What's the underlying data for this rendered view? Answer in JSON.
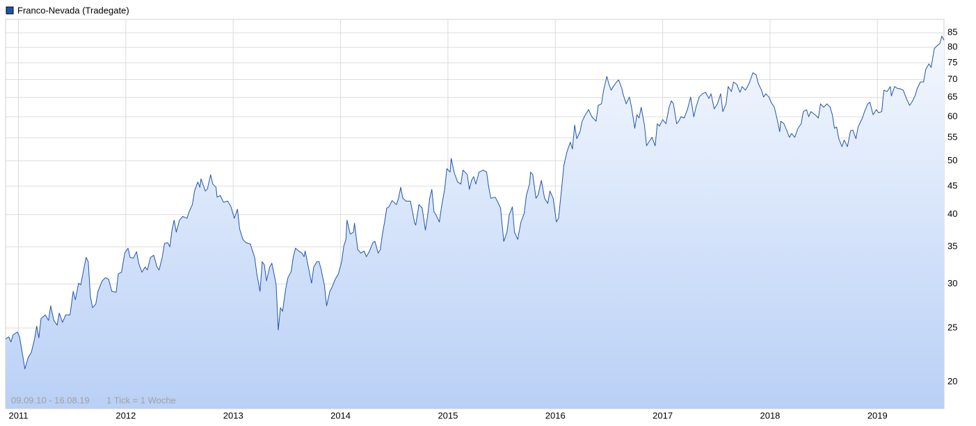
{
  "chart_data": {
    "type": "line",
    "log_y": true,
    "grid": true,
    "legend": "top-left",
    "annotations": [
      "09.09.10 - 16.08.19",
      "1 Tick = 1 Woche"
    ],
    "xlim": [
      2010.88,
      2019.62
    ],
    "xticks": [
      2011,
      2012,
      2013,
      2014,
      2015,
      2016,
      2017,
      2018,
      2019
    ],
    "ylim": [
      17.9,
      89.8
    ],
    "yticks": [
      20,
      25,
      30,
      35,
      40,
      45,
      50,
      55,
      60,
      65,
      70,
      75,
      80,
      85
    ],
    "x": [
      2010.88,
      2010.91,
      2010.93,
      2010.95,
      2010.99,
      2011.01,
      2011.04,
      2011.06,
      2011.09,
      2011.12,
      2011.15,
      2011.17,
      2011.19,
      2011.21,
      2011.25,
      2011.28,
      2011.3,
      2011.33,
      2011.36,
      2011.38,
      2011.41,
      2011.44,
      2011.48,
      2011.51,
      2011.53,
      2011.56,
      2011.58,
      2011.6,
      2011.63,
      2011.65,
      2011.67,
      2011.69,
      2011.72,
      2011.74,
      2011.78,
      2011.81,
      2011.84,
      2011.87,
      2011.91,
      2011.93,
      2011.96,
      2011.99,
      2012.02,
      2012.04,
      2012.07,
      2012.1,
      2012.12,
      2012.15,
      2012.18,
      2012.2,
      2012.23,
      2012.26,
      2012.29,
      2012.31,
      2012.34,
      2012.36,
      2012.39,
      2012.41,
      2012.43,
      2012.45,
      2012.47,
      2012.5,
      2012.53,
      2012.57,
      2012.59,
      2012.62,
      2012.64,
      2012.67,
      2012.69,
      2012.7,
      2012.74,
      2012.76,
      2012.79,
      2012.81,
      2012.84,
      2012.85,
      2012.88,
      2012.91,
      2012.95,
      2012.98,
      2013.01,
      2013.04,
      2013.06,
      2013.09,
      2013.12,
      2013.16,
      2013.18,
      2013.2,
      2013.22,
      2013.25,
      2013.27,
      2013.29,
      2013.31,
      2013.34,
      2013.36,
      2013.38,
      2013.4,
      2013.42,
      2013.44,
      2013.46,
      2013.49,
      2013.51,
      2013.54,
      2013.56,
      2013.58,
      2013.61,
      2013.64,
      2013.66,
      2013.67,
      2013.7,
      2013.73,
      2013.75,
      2013.78,
      2013.8,
      2013.82,
      2013.85,
      2013.87,
      2013.9,
      2013.92,
      2013.95,
      2013.98,
      2014.01,
      2014.03,
      2014.05,
      2014.06,
      2014.09,
      2014.12,
      2014.13,
      2014.16,
      2014.19,
      2014.22,
      2014.24,
      2014.27,
      2014.3,
      2014.32,
      2014.35,
      2014.37,
      2014.39,
      2014.41,
      2014.43,
      2014.45,
      2014.48,
      2014.52,
      2014.54,
      2014.56,
      2014.58,
      2014.61,
      2014.65,
      2014.67,
      2014.69,
      2014.7,
      2014.73,
      2014.76,
      2014.79,
      2014.81,
      2014.83,
      2014.85,
      2014.87,
      2014.89,
      2014.92,
      2014.94,
      2014.97,
      2014.99,
      2015.02,
      2015.03,
      2015.06,
      2015.09,
      2015.12,
      2015.14,
      2015.18,
      2015.2,
      2015.22,
      2015.24,
      2015.26,
      2015.29,
      2015.33,
      2015.36,
      2015.38,
      2015.4,
      2015.44,
      2015.46,
      2015.49,
      2015.52,
      2015.55,
      2015.57,
      2015.6,
      2015.62,
      2015.65,
      2015.68,
      2015.71,
      2015.73,
      2015.76,
      2015.77,
      2015.79,
      2015.82,
      2015.84,
      2015.87,
      2015.9,
      2015.93,
      2015.95,
      2015.98,
      2016.01,
      2016.03,
      2016.06,
      2016.08,
      2016.11,
      2016.14,
      2016.16,
      2016.18,
      2016.2,
      2016.23,
      2016.25,
      2016.28,
      2016.31,
      2016.34,
      2016.38,
      2016.4,
      2016.43,
      2016.45,
      2016.48,
      2016.5,
      2016.52,
      2016.54,
      2016.57,
      2016.59,
      2016.62,
      2016.63,
      2016.66,
      2016.69,
      2016.71,
      2016.74,
      2016.76,
      2016.78,
      2016.8,
      2016.83,
      2016.85,
      2016.87,
      2016.9,
      2016.93,
      2016.95,
      2016.97,
      2017.0,
      2017.03,
      2017.06,
      2017.08,
      2017.1,
      2017.13,
      2017.15,
      2017.17,
      2017.2,
      2017.23,
      2017.26,
      2017.29,
      2017.31,
      2017.34,
      2017.37,
      2017.4,
      2017.43,
      2017.45,
      2017.48,
      2017.51,
      2017.54,
      2017.56,
      2017.59,
      2017.61,
      2017.64,
      2017.66,
      2017.69,
      2017.72,
      2017.74,
      2017.77,
      2017.79,
      2017.81,
      2017.84,
      2017.87,
      2017.89,
      2017.92,
      2017.94,
      2017.96,
      2017.99,
      2018.01,
      2018.04,
      2018.07,
      2018.09,
      2018.1,
      2018.13,
      2018.16,
      2018.18,
      2018.2,
      2018.23,
      2018.26,
      2018.29,
      2018.31,
      2018.34,
      2018.36,
      2018.38,
      2018.42,
      2018.45,
      2018.47,
      2018.5,
      2018.53,
      2018.56,
      2018.58,
      2018.6,
      2018.62,
      2018.64,
      2018.67,
      2018.69,
      2018.72,
      2018.75,
      2018.77,
      2018.8,
      2018.82,
      2018.86,
      2018.88,
      2018.91,
      2018.93,
      2018.96,
      2018.99,
      2019.01,
      2019.04,
      2019.06,
      2019.09,
      2019.12,
      2019.13,
      2019.16,
      2019.19,
      2019.21,
      2019.24,
      2019.27,
      2019.3,
      2019.32,
      2019.35,
      2019.37,
      2019.4,
      2019.43,
      2019.45,
      2019.48,
      2019.5,
      2019.53,
      2019.56,
      2019.58,
      2019.6,
      2019.62
    ],
    "series": [
      {
        "name": "Franco-Nevada (Tradegate)",
        "color": "#1f53b0",
        "values": [
          23.9,
          24.1,
          23.6,
          24.3,
          24.6,
          24.1,
          22.3,
          21.1,
          22.1,
          22.6,
          23.9,
          25.2,
          24.0,
          26.0,
          26.4,
          25.8,
          27.4,
          25.8,
          25.3,
          26.6,
          25.6,
          26.4,
          26.4,
          29.1,
          28.1,
          30.1,
          29.9,
          31.3,
          33.5,
          32.9,
          28.5,
          27.2,
          27.6,
          29.1,
          30.4,
          30.8,
          30.6,
          29.1,
          29.0,
          31.3,
          31.5,
          34.1,
          34.8,
          33.5,
          33.4,
          34.3,
          32.7,
          31.5,
          32.2,
          31.8,
          33.5,
          33.8,
          32.2,
          31.8,
          33.6,
          35.5,
          35.6,
          35.0,
          37.5,
          39.1,
          37.2,
          39.1,
          39.7,
          39.4,
          40.5,
          41.7,
          44.1,
          45.8,
          44.8,
          46.4,
          44.1,
          44.5,
          47.2,
          45.4,
          44.8,
          43.0,
          43.3,
          42.1,
          42.3,
          41.3,
          39.4,
          40.9,
          37.7,
          36.1,
          35.6,
          35.4,
          34.4,
          33.5,
          31.3,
          29.1,
          32.9,
          32.5,
          30.4,
          32.2,
          32.7,
          31.3,
          29.9,
          24.8,
          27.2,
          26.8,
          29.5,
          30.8,
          31.6,
          33.6,
          34.8,
          34.4,
          34.1,
          33.6,
          34.4,
          32.2,
          30.1,
          32.2,
          32.9,
          32.9,
          31.8,
          29.8,
          27.4,
          29.1,
          29.6,
          30.6,
          31.3,
          32.9,
          35.1,
          36.1,
          39.1,
          36.9,
          37.2,
          38.6,
          34.6,
          34.1,
          34.4,
          33.6,
          34.4,
          35.6,
          35.8,
          34.1,
          34.6,
          36.9,
          38.8,
          41.1,
          41.3,
          42.4,
          41.7,
          42.8,
          44.8,
          42.8,
          42.3,
          42.3,
          40.5,
          38.6,
          38.3,
          41.7,
          41.1,
          37.5,
          39.7,
          42.8,
          44.4,
          40.5,
          39.9,
          38.8,
          41.3,
          44.5,
          48.4,
          47.7,
          50.5,
          47.5,
          45.8,
          45.4,
          48.1,
          47.2,
          44.4,
          46.1,
          46.8,
          45.4,
          47.7,
          48.1,
          47.7,
          44.8,
          42.8,
          43.0,
          42.3,
          41.1,
          35.8,
          37.2,
          39.9,
          41.3,
          37.2,
          36.1,
          38.8,
          40.2,
          43.3,
          45.4,
          47.7,
          47.2,
          42.8,
          43.4,
          46.1,
          42.8,
          41.9,
          44.1,
          42.8,
          38.8,
          39.4,
          44.8,
          49.1,
          52.0,
          54.0,
          52.5,
          58.0,
          54.8,
          56.4,
          58.9,
          60.5,
          61.8,
          60.0,
          58.9,
          62.9,
          63.3,
          67.0,
          70.9,
          68.6,
          67.0,
          68.0,
          69.3,
          69.9,
          67.4,
          66.0,
          63.3,
          65.1,
          62.4,
          57.2,
          60.5,
          59.7,
          62.4,
          58.0,
          53.2,
          54.0,
          55.1,
          53.2,
          58.3,
          57.7,
          59.3,
          58.3,
          62.4,
          64.1,
          63.3,
          58.3,
          58.9,
          60.0,
          59.7,
          61.8,
          65.1,
          60.0,
          62.4,
          65.1,
          66.0,
          66.4,
          64.7,
          66.0,
          62.0,
          63.3,
          66.0,
          61.3,
          63.3,
          68.0,
          66.6,
          69.3,
          68.6,
          66.4,
          68.0,
          67.0,
          68.0,
          69.3,
          72.0,
          71.4,
          68.9,
          67.0,
          65.1,
          66.0,
          65.1,
          63.7,
          62.4,
          58.9,
          56.4,
          58.9,
          58.3,
          56.4,
          55.1,
          56.0,
          55.1,
          57.2,
          58.3,
          61.3,
          61.8,
          60.0,
          61.3,
          60.5,
          59.7,
          63.3,
          62.4,
          63.3,
          62.4,
          60.5,
          57.2,
          57.5,
          54.8,
          53.0,
          54.5,
          53.0,
          56.6,
          56.8,
          54.8,
          57.5,
          59.7,
          61.3,
          63.3,
          63.7,
          60.5,
          61.8,
          61.0,
          61.3,
          67.0,
          66.6,
          68.0,
          65.4,
          68.0,
          67.4,
          67.4,
          67.0,
          64.7,
          62.9,
          63.7,
          65.4,
          67.4,
          69.3,
          69.3,
          73.0,
          74.7,
          73.6,
          79.6,
          80.7,
          81.2,
          83.8,
          82.4
        ]
      }
    ]
  }
}
